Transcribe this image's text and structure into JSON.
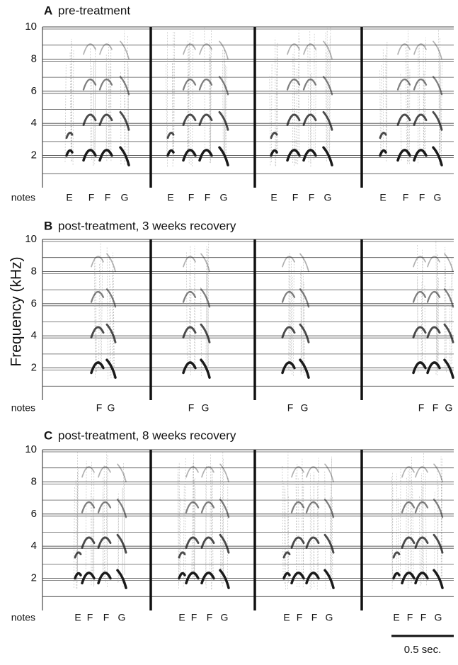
{
  "figure": {
    "y_axis_label": "Frequency (kHz)",
    "scale_bar_label": "0.5 sec.",
    "panels": [
      {
        "letter": "A",
        "title": "pre-treatment",
        "ylim": [
          0,
          10
        ],
        "yticks": [
          2,
          4,
          6,
          8,
          10
        ],
        "notes_label": "notes",
        "songs": [
          [
            "E",
            "F",
            "F",
            "G"
          ],
          [
            "E",
            "F",
            "F",
            "G"
          ],
          [
            "E",
            "F",
            "F",
            "G"
          ],
          [
            "E",
            "F",
            "F",
            "G"
          ]
        ]
      },
      {
        "letter": "B",
        "title": "post-treatment, 3 weeks recovery",
        "ylim": [
          0,
          10
        ],
        "yticks": [
          2,
          4,
          6,
          8,
          10
        ],
        "notes_label": "notes",
        "songs": [
          [
            "F",
            "G"
          ],
          [
            "F",
            "G"
          ],
          [
            "F",
            "G"
          ],
          [
            "F",
            "F",
            "G"
          ]
        ]
      },
      {
        "letter": "C",
        "title": "post-treatment, 8 weeks recovery",
        "ylim": [
          0,
          10
        ],
        "yticks": [
          2,
          4,
          6,
          8,
          10
        ],
        "notes_label": "notes",
        "songs": [
          [
            "E",
            "F",
            "F",
            "G"
          ],
          [
            "E",
            "F",
            "F",
            "G"
          ],
          [
            "E",
            "F",
            "F",
            "G"
          ],
          [
            "E",
            "F",
            "F",
            "G"
          ]
        ]
      }
    ]
  }
}
